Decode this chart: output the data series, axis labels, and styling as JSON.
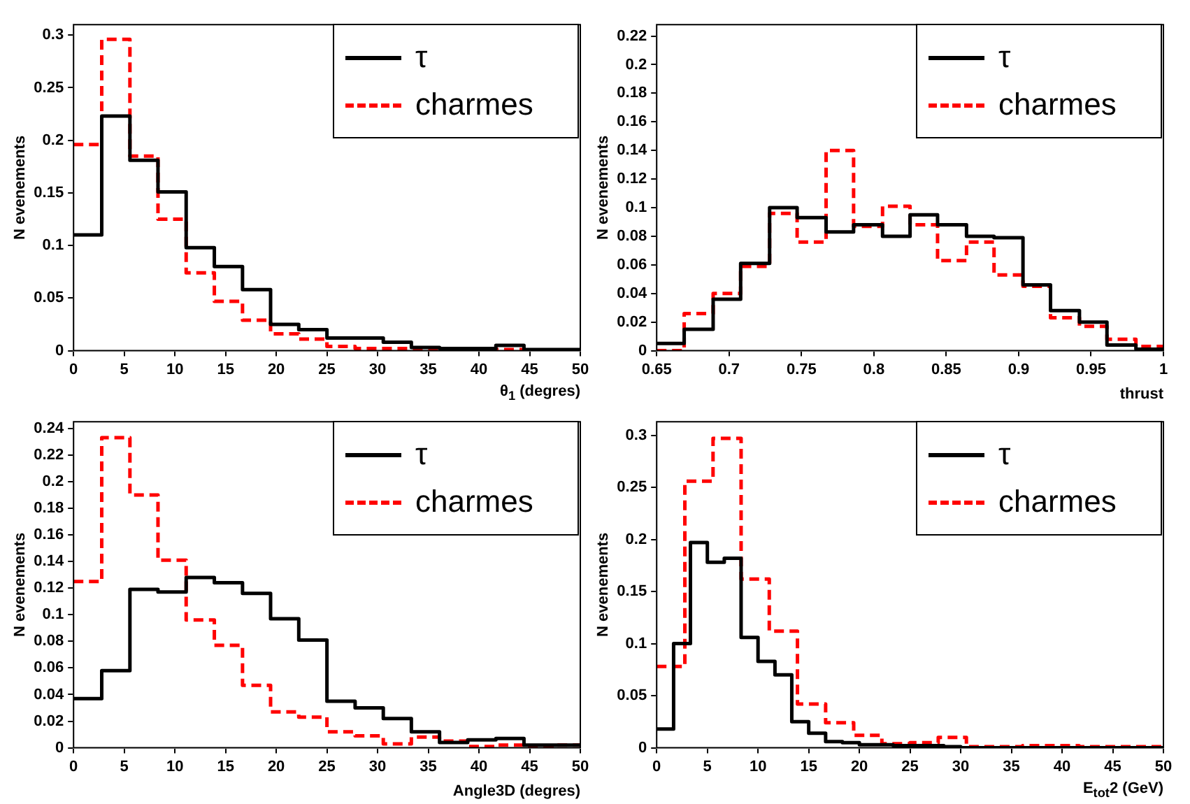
{
  "chart_data": [
    {
      "type": "histogram",
      "ylabel": "N evenements",
      "xlabel": "θ$_{1}$ (degres)",
      "legend": "top right",
      "grid": false,
      "xlim": [
        0,
        50
      ],
      "xticks": [
        0,
        5,
        10,
        15,
        20,
        25,
        30,
        35,
        40,
        45,
        50
      ],
      "ylim": [
        0,
        0.31
      ],
      "yticks": [
        0,
        0.05,
        0.1,
        0.15,
        0.2,
        0.25,
        0.3
      ],
      "bins": [
        0,
        2.78,
        5.56,
        8.33,
        11.11,
        13.89,
        16.67,
        19.44,
        22.22,
        25,
        27.78,
        30.56,
        33.33,
        36.11,
        38.89,
        41.67,
        44.44,
        47.22,
        50
      ],
      "series": [
        {
          "name": "τ",
          "color": "#000000",
          "line_style": "solid",
          "values": [
            0.11,
            0.223,
            0.181,
            0.151,
            0.098,
            0.08,
            0.058,
            0.025,
            0.02,
            0.012,
            0.012,
            0.008,
            0.003,
            0.002,
            0.002,
            0.005,
            0.001,
            0.001
          ]
        },
        {
          "name": "charmes",
          "color": "#ff0000",
          "line_style": "dashed",
          "values": [
            0.196,
            0.296,
            0.185,
            0.125,
            0.074,
            0.047,
            0.029,
            0.016,
            0.011,
            0.004,
            0.002,
            0.002,
            0.002,
            0.001,
            0.001,
            0.001,
            0,
            0
          ]
        }
      ]
    },
    {
      "type": "histogram",
      "ylabel": "N evenements",
      "xlabel": "thrust",
      "legend": "top right",
      "grid": false,
      "xlim": [
        0.65,
        1
      ],
      "xticks": [
        0.65,
        0.7,
        0.75,
        0.8,
        0.85,
        0.9,
        0.95,
        1
      ],
      "ylim": [
        0,
        0.228
      ],
      "yticks": [
        0,
        0.02,
        0.04,
        0.06,
        0.08,
        0.1,
        0.12,
        0.14,
        0.16,
        0.18,
        0.2,
        0.22
      ],
      "bins": [
        0.65,
        0.669,
        0.689,
        0.708,
        0.728,
        0.747,
        0.767,
        0.786,
        0.806,
        0.825,
        0.844,
        0.864,
        0.883,
        0.903,
        0.922,
        0.942,
        0.961,
        0.981,
        1
      ],
      "series": [
        {
          "name": "τ",
          "color": "#000000",
          "line_style": "solid",
          "values": [
            0.005,
            0.015,
            0.036,
            0.061,
            0.1,
            0.093,
            0.083,
            0.088,
            0.08,
            0.095,
            0.088,
            0.08,
            0.079,
            0.046,
            0.028,
            0.02,
            0.004,
            0.001
          ]
        },
        {
          "name": "charmes",
          "color": "#ff0000",
          "line_style": "dashed",
          "values": [
            0,
            0.026,
            0.04,
            0.059,
            0.096,
            0.076,
            0.14,
            0.087,
            0.101,
            0.088,
            0.063,
            0.076,
            0.053,
            0.045,
            0.023,
            0.017,
            0.008,
            0.003
          ]
        }
      ]
    },
    {
      "type": "histogram",
      "ylabel": "N evenements",
      "xlabel": "Angle3D (degres)",
      "legend": "top right",
      "grid": false,
      "xlim": [
        0,
        50
      ],
      "xticks": [
        0,
        5,
        10,
        15,
        20,
        25,
        30,
        35,
        40,
        45,
        50
      ],
      "ylim": [
        0,
        0.245
      ],
      "yticks": [
        0,
        0.02,
        0.04,
        0.06,
        0.08,
        0.1,
        0.12,
        0.14,
        0.16,
        0.18,
        0.2,
        0.22,
        0.24
      ],
      "bins": [
        0,
        2.78,
        5.56,
        8.33,
        11.11,
        13.89,
        16.67,
        19.44,
        22.22,
        25,
        27.78,
        30.56,
        33.33,
        36.11,
        38.89,
        41.67,
        44.44,
        47.22,
        50
      ],
      "series": [
        {
          "name": "τ",
          "color": "#000000",
          "line_style": "solid",
          "values": [
            0.037,
            0.058,
            0.119,
            0.117,
            0.128,
            0.124,
            0.116,
            0.097,
            0.081,
            0.035,
            0.03,
            0.022,
            0.012,
            0.004,
            0.006,
            0.007,
            0.002,
            0.002
          ]
        },
        {
          "name": "charmes",
          "color": "#ff0000",
          "line_style": "dashed",
          "values": [
            0.125,
            0.233,
            0.19,
            0.141,
            0.096,
            0.077,
            0.047,
            0.027,
            0.023,
            0.012,
            0.009,
            0.003,
            0.008,
            0.005,
            0.001,
            0.002,
            0.001,
            0.002
          ]
        }
      ]
    },
    {
      "type": "histogram",
      "ylabel": "N evenements",
      "xlabel": "E$_{tot}$2 (GeV)",
      "legend": "top right",
      "grid": false,
      "xlim": [
        0,
        50
      ],
      "xticks": [
        0,
        5,
        10,
        15,
        20,
        25,
        30,
        35,
        40,
        45,
        50
      ],
      "ylim": [
        0,
        0.313
      ],
      "yticks": [
        0,
        0.05,
        0.1,
        0.15,
        0.2,
        0.25,
        0.3
      ],
      "bins": [
        0,
        1.67,
        3.33,
        5,
        6.67,
        8.33,
        10,
        11.67,
        13.33,
        15,
        16.67,
        18.33,
        20,
        21.67,
        23.33,
        25,
        26.67,
        28.33,
        30,
        31.67,
        33.33,
        35,
        36.67,
        38.33,
        40,
        41.67,
        43.33,
        45,
        46.67,
        48.33,
        50
      ],
      "series": [
        {
          "name": "τ",
          "color": "#000000",
          "line_style": "solid",
          "values": [
            0.018,
            0.1,
            0.197,
            0.178,
            0.182,
            0.106,
            0.083,
            0.07,
            0.025,
            0.014,
            0.006,
            0.005,
            0.003,
            0.003,
            0.002,
            0.002,
            0.002,
            0.001,
            0,
            0,
            0,
            0,
            0,
            0,
            0,
            0,
            0,
            0,
            0,
            0
          ]
        },
        {
          "name": "charmes",
          "color": "#ff0000",
          "line_style": "dashed",
          "bins": [
            0,
            2.78,
            5.56,
            8.33,
            11.11,
            13.89,
            16.67,
            19.44,
            22.22,
            25,
            27.78,
            30.56,
            33.33,
            36.11,
            38.89,
            41.67,
            44.44,
            47.22,
            50
          ],
          "values": [
            0.078,
            0.256,
            0.297,
            0.162,
            0.112,
            0.042,
            0.024,
            0.012,
            0.004,
            0.005,
            0.01,
            0.001,
            0.001,
            0.002,
            0.002,
            0.001,
            0.001,
            0.001
          ]
        }
      ]
    }
  ]
}
